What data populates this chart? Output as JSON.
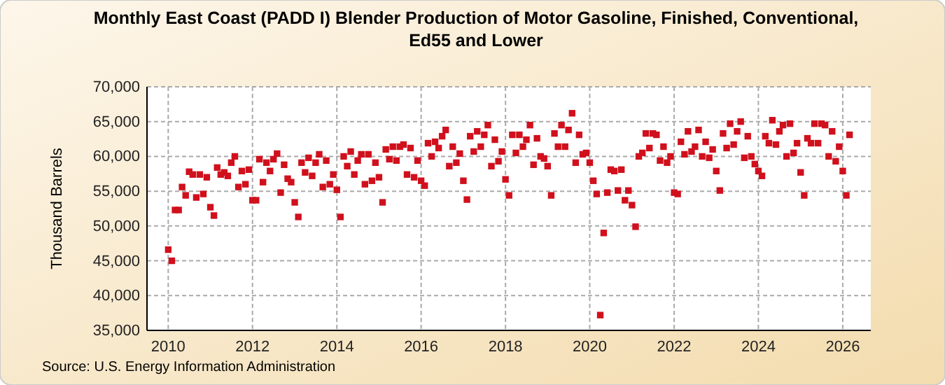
{
  "chart_data": {
    "type": "scatter",
    "title": "Monthly East Coast (PADD I) Blender Production of Motor Gasoline, Finished, Conventional, Ed55 and Lower",
    "ylabel": "Thousand Barrels",
    "annotations": [
      "Source: U.S. Energy Information Administration"
    ],
    "x": [
      "2010-01",
      "2010-02",
      "2010-03",
      "2010-04",
      "2010-05",
      "2010-06",
      "2010-07",
      "2010-08",
      "2010-09",
      "2010-10",
      "2010-11",
      "2010-12",
      "2011-01",
      "2011-02",
      "2011-03",
      "2011-04",
      "2011-05",
      "2011-06",
      "2011-07",
      "2011-08",
      "2011-09",
      "2011-10",
      "2011-11",
      "2011-12",
      "2012-01",
      "2012-02",
      "2012-03",
      "2012-04",
      "2012-05",
      "2012-06",
      "2012-07",
      "2012-08",
      "2012-09",
      "2012-10",
      "2012-11",
      "2012-12",
      "2013-01",
      "2013-02",
      "2013-03",
      "2013-04",
      "2013-05",
      "2013-06",
      "2013-07",
      "2013-08",
      "2013-09",
      "2013-10",
      "2013-11",
      "2013-12",
      "2014-01",
      "2014-02",
      "2014-03",
      "2014-04",
      "2014-05",
      "2014-06",
      "2014-07",
      "2014-08",
      "2014-09",
      "2014-10",
      "2014-11",
      "2014-12",
      "2015-01",
      "2015-02",
      "2015-03",
      "2015-04",
      "2015-05",
      "2015-06",
      "2015-07",
      "2015-08",
      "2015-09",
      "2015-10",
      "2015-11",
      "2015-12",
      "2016-01",
      "2016-02",
      "2016-03",
      "2016-04",
      "2016-05",
      "2016-06",
      "2016-07",
      "2016-08",
      "2016-09",
      "2016-10",
      "2016-11",
      "2016-12",
      "2017-01",
      "2017-02",
      "2017-03",
      "2017-04",
      "2017-05",
      "2017-06",
      "2017-07",
      "2017-08",
      "2017-09",
      "2017-10",
      "2017-11",
      "2017-12",
      "2018-01",
      "2018-02",
      "2018-03",
      "2018-04",
      "2018-05",
      "2018-06",
      "2018-07",
      "2018-08",
      "2018-09",
      "2018-10",
      "2018-11",
      "2018-12",
      "2019-01",
      "2019-02",
      "2019-03",
      "2019-04",
      "2019-05",
      "2019-06",
      "2019-07",
      "2019-08",
      "2019-09",
      "2019-10",
      "2019-11",
      "2019-12",
      "2020-01",
      "2020-02",
      "2020-03",
      "2020-04",
      "2020-05",
      "2020-06",
      "2020-07",
      "2020-08",
      "2020-09",
      "2020-10",
      "2020-11",
      "2020-12",
      "2021-01",
      "2021-02",
      "2021-03",
      "2021-04",
      "2021-05",
      "2021-06",
      "2021-07",
      "2021-08",
      "2021-09",
      "2021-10",
      "2021-11",
      "2021-12",
      "2022-01",
      "2022-02",
      "2022-03",
      "2022-04",
      "2022-05",
      "2022-06",
      "2022-07",
      "2022-08",
      "2022-09",
      "2022-10",
      "2022-11",
      "2022-12",
      "2023-01",
      "2023-02",
      "2023-03",
      "2023-04",
      "2023-05",
      "2023-06",
      "2023-07",
      "2023-08",
      "2023-09",
      "2023-10",
      "2023-11",
      "2023-12",
      "2024-01",
      "2024-02",
      "2024-03",
      "2024-04",
      "2024-05",
      "2024-06",
      "2024-07",
      "2024-08",
      "2024-09",
      "2024-10",
      "2024-11",
      "2024-12",
      "2025-01",
      "2025-02",
      "2025-03",
      "2025-04",
      "2025-05",
      "2025-06",
      "2025-07",
      "2025-08",
      "2025-09",
      "2025-10",
      "2025-11",
      "2025-12",
      "2026-01",
      "2026-02",
      "2026-03"
    ],
    "series": [
      {
        "color": "#d0101c",
        "values": [
          46600,
          45000,
          52300,
          52300,
          55600,
          54400,
          57800,
          57400,
          54100,
          57400,
          54600,
          57000,
          52700,
          51500,
          58400,
          57400,
          57700,
          57200,
          59100,
          60000,
          55600,
          57900,
          56000,
          58100,
          53700,
          53700,
          59600,
          56300,
          59100,
          57900,
          59600,
          60400,
          54800,
          58800,
          56800,
          56300,
          53400,
          51300,
          59100,
          57700,
          59800,
          57200,
          59100,
          60300,
          55600,
          59400,
          56000,
          57400,
          55200,
          51300,
          60000,
          58600,
          60700,
          57400,
          59400,
          60300,
          56000,
          60300,
          56500,
          59100,
          57000,
          53400,
          61000,
          59600,
          61400,
          59400,
          61400,
          61700,
          57400,
          61200,
          57000,
          59400,
          56500,
          55800,
          61900,
          60000,
          62100,
          61200,
          62900,
          63800,
          58600,
          61400,
          59100,
          60400,
          56500,
          53800,
          62900,
          60700,
          63600,
          61400,
          63100,
          64500,
          58600,
          62400,
          59300,
          60700,
          56700,
          54400,
          63100,
          60500,
          63100,
          61400,
          62400,
          64500,
          58800,
          62600,
          60000,
          59700,
          58600,
          54400,
          63300,
          61400,
          64500,
          61400,
          63800,
          66200,
          59100,
          63100,
          60300,
          60500,
          59100,
          56500,
          54600,
          37200,
          49000,
          54800,
          58100,
          57900,
          55100,
          58100,
          53700,
          55100,
          53000,
          49900,
          60000,
          60500,
          63300,
          61200,
          63300,
          63100,
          59400,
          61400,
          59100,
          60000,
          54800,
          54600,
          62100,
          60300,
          63600,
          60700,
          61400,
          63800,
          60000,
          62100,
          59800,
          61000,
          57900,
          55100,
          63300,
          61200,
          64700,
          61700,
          63600,
          65000,
          59800,
          62900,
          60000,
          58900,
          57900,
          57200,
          62900,
          61900,
          65200,
          61700,
          63600,
          64500,
          60000,
          64700,
          60500,
          61900,
          57700,
          54400,
          62600,
          61900,
          64700,
          61900,
          64700,
          64500,
          60000,
          63600,
          59300,
          61400,
          57900,
          54400,
          63100
        ]
      }
    ],
    "xlim": [
      "2009-07",
      "2026-09"
    ],
    "xticks": [
      {
        "value": "2010-01",
        "label": "2010"
      },
      {
        "value": "2012-01",
        "label": "2012"
      },
      {
        "value": "2014-01",
        "label": "2014"
      },
      {
        "value": "2016-01",
        "label": "2016"
      },
      {
        "value": "2018-01",
        "label": "2018"
      },
      {
        "value": "2020-01",
        "label": "2020"
      },
      {
        "value": "2022-01",
        "label": "2022"
      },
      {
        "value": "2024-01",
        "label": "2024"
      },
      {
        "value": "2026-01",
        "label": "2026"
      }
    ],
    "ylim": [
      35000,
      70000
    ],
    "yticks": [
      {
        "value": 35000,
        "label": "35,000"
      },
      {
        "value": 40000,
        "label": "40,000"
      },
      {
        "value": 45000,
        "label": "45,000"
      },
      {
        "value": 50000,
        "label": "50,000"
      },
      {
        "value": 55000,
        "label": "55,000"
      },
      {
        "value": 60000,
        "label": "60,000"
      },
      {
        "value": 65000,
        "label": "65,000"
      },
      {
        "value": 70000,
        "label": "70,000"
      }
    ],
    "grid": true,
    "marker": "square"
  }
}
